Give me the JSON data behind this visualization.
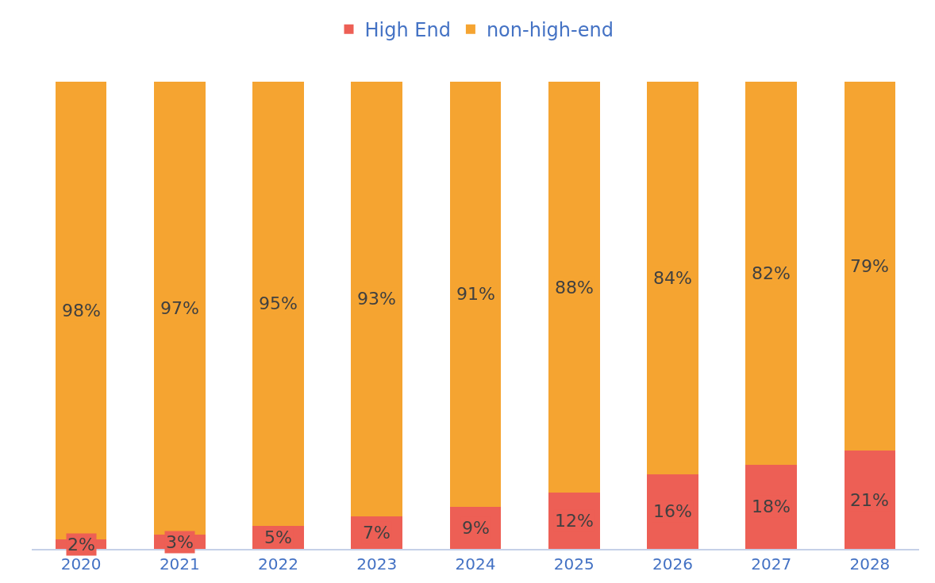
{
  "chart_data": {
    "type": "bar",
    "stacked": true,
    "categories": [
      "2020",
      "2021",
      "2022",
      "2023",
      "2024",
      "2025",
      "2026",
      "2027",
      "2028"
    ],
    "series": [
      {
        "name": "High End",
        "color": "#ed5f55",
        "values": [
          2,
          3,
          5,
          7,
          9,
          12,
          16,
          18,
          21
        ],
        "value_labels": [
          "2%",
          "3%",
          "5%",
          "7%",
          "9%",
          "12%",
          "16%",
          "18%",
          "21%"
        ]
      },
      {
        "name": "non-high-end",
        "color": "#f5a431",
        "values": [
          98,
          97,
          95,
          93,
          91,
          88,
          84,
          82,
          79
        ],
        "value_labels": [
          "98%",
          "97%",
          "95%",
          "93%",
          "91%",
          "88%",
          "84%",
          "82%",
          "79%"
        ]
      }
    ],
    "legend": "top",
    "grid": false,
    "tick_labels": "x"
  }
}
